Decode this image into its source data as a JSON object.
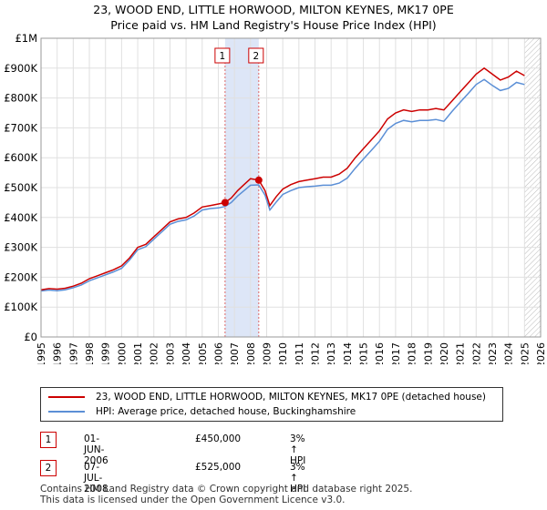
{
  "title_line1": "23, WOOD END, LITTLE HORWOOD, MILTON KEYNES, MK17 0PE",
  "title_line2": "Price paid vs. HM Land Registry's House Price Index (HPI)",
  "chart_data": {
    "type": "line",
    "title": "Price paid vs. HM Land Registry's House Price Index (HPI)",
    "xlabel": "",
    "ylabel": "",
    "xlim": [
      1995,
      2026
    ],
    "ylim": [
      0,
      1000000
    ],
    "x_ticks": [
      1995,
      1996,
      1997,
      1998,
      1999,
      2000,
      2001,
      2002,
      2003,
      2004,
      2005,
      2006,
      2007,
      2008,
      2009,
      2010,
      2011,
      2012,
      2013,
      2014,
      2015,
      2016,
      2017,
      2018,
      2019,
      2020,
      2021,
      2022,
      2023,
      2024,
      2025,
      2026
    ],
    "y_ticks": [
      {
        "value": 0,
        "label": "£0"
      },
      {
        "value": 100000,
        "label": "£100K"
      },
      {
        "value": 200000,
        "label": "£200K"
      },
      {
        "value": 300000,
        "label": "£300K"
      },
      {
        "value": 400000,
        "label": "£400K"
      },
      {
        "value": 500000,
        "label": "£500K"
      },
      {
        "value": 600000,
        "label": "£600K"
      },
      {
        "value": 700000,
        "label": "£700K"
      },
      {
        "value": 800000,
        "label": "£800K"
      },
      {
        "value": 900000,
        "label": "£900K"
      },
      {
        "value": 1000000,
        "label": "£1M"
      }
    ],
    "grid": true,
    "shaded_region": {
      "x_start": 2006.42,
      "x_end": 2008.51,
      "color": "#dde6f7"
    },
    "projection_region": {
      "x_start": 2025.0,
      "x_end": 2026
    },
    "series": [
      {
        "name": "23, WOOD END, LITTLE HORWOOD, MILTON KEYNES, MK17 0PE (detached house)",
        "color": "#cc0000",
        "points": [
          [
            1995.0,
            158000
          ],
          [
            1995.5,
            162000
          ],
          [
            1996.0,
            160000
          ],
          [
            1996.5,
            163000
          ],
          [
            1997.0,
            170000
          ],
          [
            1997.5,
            180000
          ],
          [
            1998.0,
            195000
          ],
          [
            1998.5,
            205000
          ],
          [
            1999.0,
            215000
          ],
          [
            1999.5,
            225000
          ],
          [
            2000.0,
            238000
          ],
          [
            2000.5,
            265000
          ],
          [
            2001.0,
            300000
          ],
          [
            2001.5,
            310000
          ],
          [
            2002.0,
            335000
          ],
          [
            2002.5,
            360000
          ],
          [
            2003.0,
            385000
          ],
          [
            2003.5,
            395000
          ],
          [
            2004.0,
            400000
          ],
          [
            2004.5,
            415000
          ],
          [
            2005.0,
            435000
          ],
          [
            2005.5,
            440000
          ],
          [
            2006.0,
            445000
          ],
          [
            2006.42,
            450000
          ],
          [
            2006.8,
            465000
          ],
          [
            2007.2,
            490000
          ],
          [
            2007.6,
            510000
          ],
          [
            2008.0,
            530000
          ],
          [
            2008.51,
            525000
          ],
          [
            2008.9,
            490000
          ],
          [
            2009.2,
            440000
          ],
          [
            2009.6,
            470000
          ],
          [
            2010.0,
            495000
          ],
          [
            2010.5,
            510000
          ],
          [
            2011.0,
            520000
          ],
          [
            2011.5,
            525000
          ],
          [
            2012.0,
            530000
          ],
          [
            2012.5,
            535000
          ],
          [
            2013.0,
            535000
          ],
          [
            2013.5,
            545000
          ],
          [
            2014.0,
            565000
          ],
          [
            2014.5,
            600000
          ],
          [
            2015.0,
            630000
          ],
          [
            2015.5,
            660000
          ],
          [
            2016.0,
            690000
          ],
          [
            2016.5,
            730000
          ],
          [
            2017.0,
            750000
          ],
          [
            2017.5,
            760000
          ],
          [
            2018.0,
            755000
          ],
          [
            2018.5,
            760000
          ],
          [
            2019.0,
            760000
          ],
          [
            2019.5,
            765000
          ],
          [
            2020.0,
            760000
          ],
          [
            2020.5,
            790000
          ],
          [
            2021.0,
            820000
          ],
          [
            2021.5,
            850000
          ],
          [
            2022.0,
            880000
          ],
          [
            2022.5,
            900000
          ],
          [
            2023.0,
            880000
          ],
          [
            2023.5,
            860000
          ],
          [
            2024.0,
            870000
          ],
          [
            2024.5,
            890000
          ],
          [
            2025.0,
            875000
          ]
        ]
      },
      {
        "name": "HPI: Average price, detached house, Buckinghamshire",
        "color": "#5b8fd6",
        "points": [
          [
            1995.0,
            154000
          ],
          [
            1995.5,
            157000
          ],
          [
            1996.0,
            155000
          ],
          [
            1996.5,
            158000
          ],
          [
            1997.0,
            165000
          ],
          [
            1997.5,
            174000
          ],
          [
            1998.0,
            188000
          ],
          [
            1998.5,
            198000
          ],
          [
            1999.0,
            208000
          ],
          [
            1999.5,
            218000
          ],
          [
            2000.0,
            230000
          ],
          [
            2000.5,
            258000
          ],
          [
            2001.0,
            292000
          ],
          [
            2001.5,
            302000
          ],
          [
            2002.0,
            327000
          ],
          [
            2002.5,
            352000
          ],
          [
            2003.0,
            377000
          ],
          [
            2003.5,
            387000
          ],
          [
            2004.0,
            392000
          ],
          [
            2004.5,
            405000
          ],
          [
            2005.0,
            425000
          ],
          [
            2005.5,
            430000
          ],
          [
            2006.0,
            432000
          ],
          [
            2006.42,
            437000
          ],
          [
            2006.8,
            450000
          ],
          [
            2007.2,
            472000
          ],
          [
            2007.6,
            490000
          ],
          [
            2008.0,
            508000
          ],
          [
            2008.51,
            509000
          ],
          [
            2008.9,
            475000
          ],
          [
            2009.2,
            425000
          ],
          [
            2009.6,
            452000
          ],
          [
            2010.0,
            477000
          ],
          [
            2010.5,
            490000
          ],
          [
            2011.0,
            500000
          ],
          [
            2011.5,
            503000
          ],
          [
            2012.0,
            505000
          ],
          [
            2012.5,
            508000
          ],
          [
            2013.0,
            508000
          ],
          [
            2013.5,
            515000
          ],
          [
            2014.0,
            532000
          ],
          [
            2014.5,
            565000
          ],
          [
            2015.0,
            595000
          ],
          [
            2015.5,
            625000
          ],
          [
            2016.0,
            655000
          ],
          [
            2016.5,
            695000
          ],
          [
            2017.0,
            715000
          ],
          [
            2017.5,
            725000
          ],
          [
            2018.0,
            720000
          ],
          [
            2018.5,
            725000
          ],
          [
            2019.0,
            725000
          ],
          [
            2019.5,
            728000
          ],
          [
            2020.0,
            722000
          ],
          [
            2020.5,
            755000
          ],
          [
            2021.0,
            785000
          ],
          [
            2021.5,
            815000
          ],
          [
            2022.0,
            845000
          ],
          [
            2022.5,
            862000
          ],
          [
            2023.0,
            842000
          ],
          [
            2023.5,
            825000
          ],
          [
            2024.0,
            832000
          ],
          [
            2024.5,
            852000
          ],
          [
            2025.0,
            845000
          ]
        ]
      }
    ],
    "annotations": [
      {
        "label": "1",
        "x": 2006.42,
        "y": 450000
      },
      {
        "label": "2",
        "x": 2008.51,
        "y": 525000
      }
    ]
  },
  "legend": [
    {
      "label": "23, WOOD END, LITTLE HORWOOD, MILTON KEYNES, MK17 0PE (detached house)",
      "color": "#cc0000"
    },
    {
      "label": "HPI: Average price, detached house, Buckinghamshire",
      "color": "#5b8fd6"
    }
  ],
  "sales": [
    {
      "num": "1",
      "date": "01-JUN-2006",
      "price": "£450,000",
      "hpi": "3% ↑ HPI"
    },
    {
      "num": "2",
      "date": "07-JUL-2008",
      "price": "£525,000",
      "hpi": "3% ↑ HPI"
    }
  ],
  "footer_line1": "Contains HM Land Registry data © Crown copyright and database right 2025.",
  "footer_line2": "This data is licensed under the Open Government Licence v3.0."
}
